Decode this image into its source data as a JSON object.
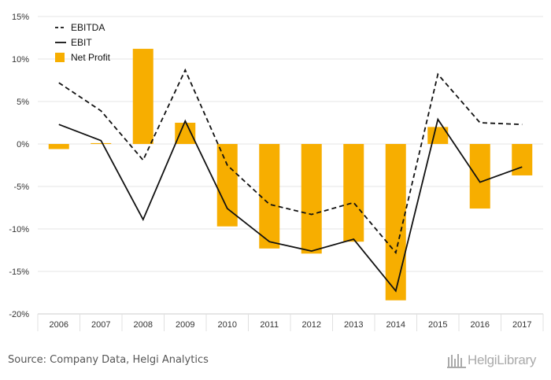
{
  "chart_data": {
    "type": "bar",
    "categories": [
      "2006",
      "2007",
      "2008",
      "2009",
      "2010",
      "2011",
      "2012",
      "2013",
      "2014",
      "2015",
      "2016",
      "2017"
    ],
    "series": [
      {
        "name": "EBITDA",
        "kind": "line",
        "style": "dashed",
        "color": "#111111",
        "values": [
          7.2,
          3.9,
          -1.9,
          8.7,
          -2.5,
          -7.1,
          -8.3,
          -6.9,
          -12.8,
          8.2,
          2.5,
          2.3
        ]
      },
      {
        "name": "EBIT",
        "kind": "line",
        "style": "solid",
        "color": "#111111",
        "values": [
          2.3,
          0.4,
          -8.9,
          2.7,
          -7.6,
          -11.5,
          -12.6,
          -11.2,
          -17.3,
          2.9,
          -4.5,
          -2.7
        ]
      },
      {
        "name": "Net Profit",
        "kind": "bar",
        "color": "#f7ae00",
        "values": [
          -0.6,
          0.1,
          11.2,
          2.5,
          -9.7,
          -12.3,
          -12.9,
          -11.5,
          -18.4,
          2.0,
          -7.6,
          -3.7
        ]
      }
    ],
    "ylim": [
      -20,
      15
    ],
    "yticks": [
      15,
      10,
      5,
      0,
      -5,
      -10,
      -15,
      -20
    ],
    "ytick_labels": [
      "15%",
      "10%",
      "5%",
      "0%",
      "-5%",
      "-10%",
      "-15%",
      "-20%"
    ],
    "grid": true,
    "legend_position": "top-left"
  },
  "source": "Source: Company Data, Helgi Analytics",
  "logo_text": "HelgiLibrary"
}
